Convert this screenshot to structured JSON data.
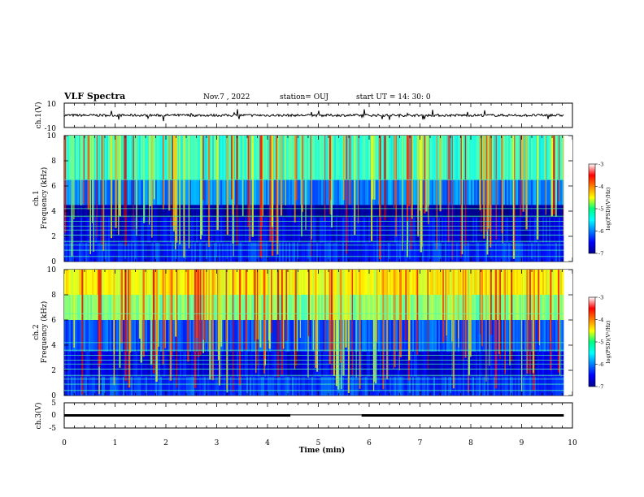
{
  "header": {
    "title": "VLF Spectra",
    "date": "Nov.7 , 2022",
    "station": "station= OUJ",
    "start": "start UT = 14: 30: 0"
  },
  "colorbar": {
    "label": "log(PSD)(V²/Hz)",
    "ticks": [
      "-3",
      "-4",
      "-5",
      "-6",
      "-7"
    ],
    "range": [
      -7,
      -3
    ],
    "colormap": "jet"
  },
  "chart_data": [
    {
      "type": "line",
      "name": "ch1-waveform",
      "ylabel": "ch.1(V)",
      "ytick_labels": [
        "10",
        "-10"
      ],
      "ylim": [
        -10,
        10
      ],
      "xlim": [
        0,
        10
      ],
      "baseline": 0,
      "noise_amplitude": 2
    },
    {
      "type": "heatmap",
      "name": "ch1-spectrogram",
      "ylabel": "ch.1\nFrequency (kHz)",
      "ytick_labels": [
        "0",
        "2",
        "4",
        "6",
        "8",
        "10"
      ],
      "ylim": [
        0,
        10
      ],
      "xlim": [
        0,
        9.83
      ],
      "colorbar_range": [
        -7,
        -3
      ],
      "bands": [
        {
          "f0": 0,
          "f1": 1.5,
          "log_psd": -6.4
        },
        {
          "f0": 1.5,
          "f1": 3.5,
          "log_psd": -6.6
        },
        {
          "f0": 3.5,
          "f1": 4.5,
          "log_psd": -6.9
        },
        {
          "f0": 4.5,
          "f1": 6.5,
          "log_psd": -6.0
        },
        {
          "f0": 6.5,
          "f1": 10,
          "log_psd": -5.3
        }
      ]
    },
    {
      "type": "heatmap",
      "name": "ch2-spectrogram",
      "ylabel": "ch.2\nFrequency (kHz)",
      "ytick_labels": [
        "0",
        "2",
        "4",
        "6",
        "8",
        "10"
      ],
      "ylim": [
        0,
        10
      ],
      "xlim": [
        0,
        9.83
      ],
      "colorbar_range": [
        -7,
        -3
      ],
      "bands": [
        {
          "f0": 0,
          "f1": 1.5,
          "log_psd": -6.3
        },
        {
          "f0": 1.5,
          "f1": 3.5,
          "log_psd": -6.6
        },
        {
          "f0": 3.5,
          "f1": 6.0,
          "log_psd": -6.2
        },
        {
          "f0": 6.0,
          "f1": 8.0,
          "log_psd": -5.0
        },
        {
          "f0": 8.0,
          "f1": 10,
          "log_psd": -4.5
        }
      ]
    },
    {
      "type": "line",
      "name": "ch3-trace",
      "ylabel": "ch.3(V)",
      "ytick_labels": [
        "5",
        "0",
        "-5"
      ],
      "ylim": [
        -5,
        5
      ],
      "xlim": [
        0,
        10
      ],
      "segments": [
        {
          "x0": 0,
          "x1": 4.45,
          "y": 0
        },
        {
          "x0": 4.45,
          "x1": 5.85,
          "y": 0.2
        },
        {
          "x0": 5.85,
          "x1": 9.83,
          "y": 0
        }
      ]
    }
  ],
  "xaxis": {
    "label": "Time (min)",
    "ticks": [
      "0",
      "1",
      "2",
      "3",
      "4",
      "5",
      "6",
      "7",
      "8",
      "9",
      "10"
    ],
    "range": [
      0,
      10
    ]
  }
}
